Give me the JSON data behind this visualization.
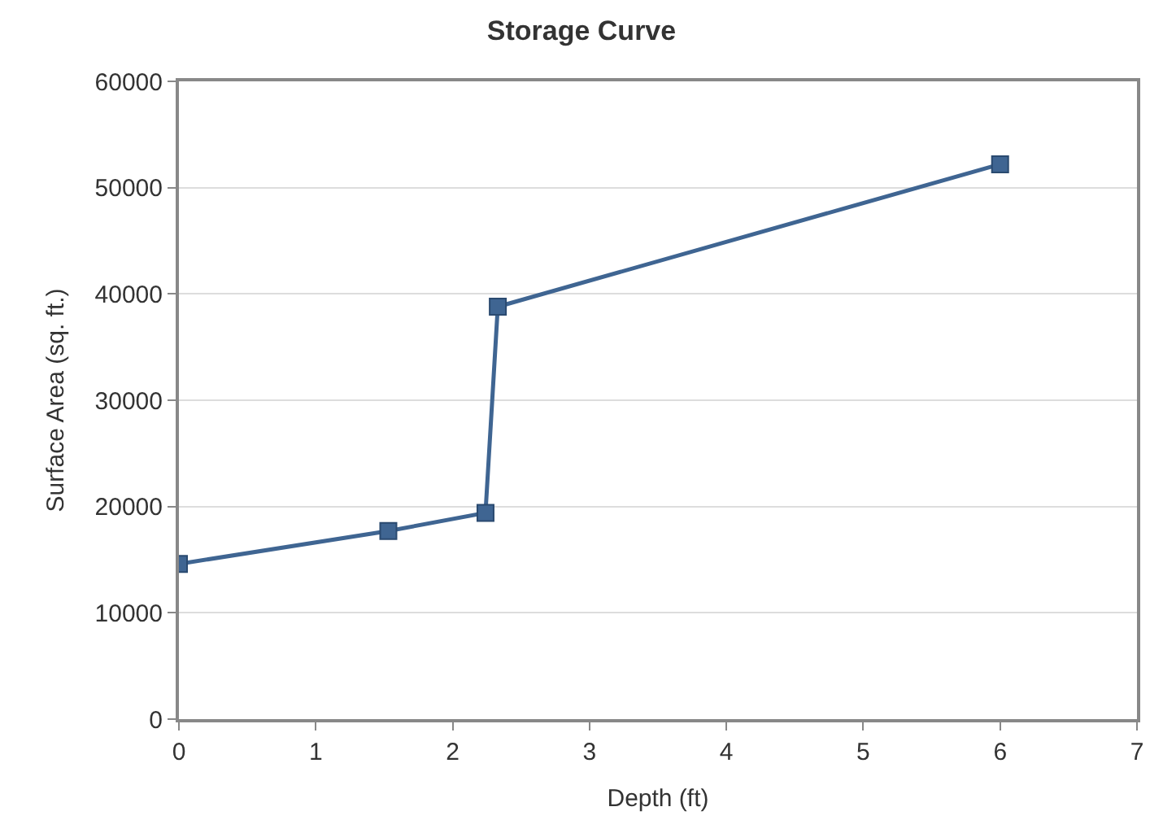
{
  "chart_data": {
    "type": "line",
    "title": "Storage Curve",
    "xlabel": "Depth (ft)",
    "ylabel": "Surface Area (sq. ft.)",
    "x": [
      0,
      1.53,
      2.24,
      2.33,
      6.0
    ],
    "series": [
      {
        "color": "#3f6592",
        "values": [
          14600,
          17700,
          19400,
          38800,
          52200
        ]
      }
    ],
    "xlim": [
      0,
      7
    ],
    "xticks": [
      0,
      1,
      2,
      3,
      4,
      5,
      6,
      7
    ],
    "ylim": [
      0,
      60000
    ],
    "yticks": [
      0,
      10000,
      20000,
      30000,
      40000,
      50000,
      60000
    ],
    "grid": "y",
    "legend": false,
    "marker": "square",
    "line_style": "solid"
  }
}
